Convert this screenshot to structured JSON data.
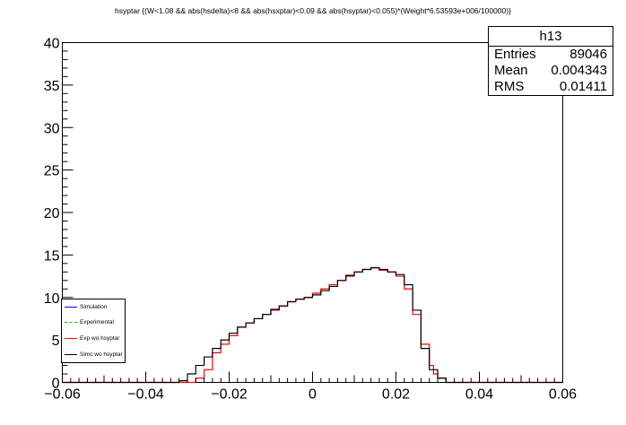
{
  "chart_data": {
    "type": "line",
    "title": "hsyptar {(W<1.08 && abs(hsdelta)<8 && abs(hsxptar)<0.09 && abs(hsyptar)<0.055)*(Weight*6.53593e+006/100000)}",
    "xlabel": "",
    "ylabel": "",
    "xlim": [
      -0.06,
      0.06
    ],
    "ylim": [
      0,
      40
    ],
    "x_ticks": [
      -0.06,
      -0.04,
      -0.02,
      0,
      0.02,
      0.04,
      0.06
    ],
    "x_tick_labels": [
      "−0.06",
      "−0.04",
      "−0.02",
      "0",
      "0.02",
      "0.04",
      "0.06"
    ],
    "y_ticks": [
      0,
      5,
      10,
      15,
      20,
      25,
      30,
      35,
      40
    ],
    "y_tick_labels": [
      "0",
      "5",
      "10",
      "15",
      "20",
      "25",
      "30",
      "35",
      "40"
    ],
    "grid": false,
    "legend_position": "bottom-left",
    "stats": {
      "name": "h13",
      "rows": [
        {
          "label": "Entries",
          "value": "89046"
        },
        {
          "label": "Mean",
          "value": "0.004343"
        },
        {
          "label": "RMS",
          "value": "0.01411"
        }
      ]
    },
    "series": [
      {
        "name": "Simulation",
        "color": "#0000ff",
        "style": "solid",
        "x": [],
        "y": []
      },
      {
        "name": "Experimental",
        "color": "#00c000",
        "style": "dashed",
        "x": [],
        "y": []
      },
      {
        "name": "Exp wo hsyptar",
        "color": "#ff0000",
        "style": "solid",
        "x": [
          -0.06,
          -0.04,
          -0.032,
          -0.03,
          -0.028,
          -0.026,
          -0.024,
          -0.022,
          -0.02,
          -0.018,
          -0.016,
          -0.014,
          -0.012,
          -0.01,
          -0.008,
          -0.006,
          -0.004,
          -0.002,
          0,
          0.002,
          0.004,
          0.006,
          0.008,
          0.01,
          0.012,
          0.014,
          0.016,
          0.018,
          0.02,
          0.022,
          0.024,
          0.026,
          0.028,
          0.029,
          0.03,
          0.032,
          0.036,
          0.06
        ],
        "y": [
          0,
          0,
          0,
          0,
          0.5,
          1.5,
          3.5,
          4.5,
          5.5,
          6.5,
          7.0,
          7.5,
          8.0,
          8.5,
          9.0,
          9.5,
          9.8,
          10.0,
          10.5,
          11.0,
          11.5,
          12.0,
          12.5,
          13.0,
          13.3,
          13.5,
          13.2,
          13.0,
          12.5,
          11.0,
          8.0,
          4.5,
          2.0,
          1.0,
          0.5,
          0,
          0,
          0
        ]
      },
      {
        "name": "Simc wo hsyptar",
        "color": "#000000",
        "style": "solid",
        "x": [
          -0.06,
          -0.034,
          -0.032,
          -0.03,
          -0.028,
          -0.026,
          -0.024,
          -0.022,
          -0.02,
          -0.018,
          -0.016,
          -0.014,
          -0.012,
          -0.01,
          -0.008,
          -0.006,
          -0.004,
          -0.002,
          0,
          0.002,
          0.004,
          0.006,
          0.008,
          0.01,
          0.012,
          0.014,
          0.016,
          0.018,
          0.02,
          0.022,
          0.024,
          0.026,
          0.028,
          0.03,
          0.032,
          0.06
        ],
        "y": [
          0,
          0,
          0.2,
          1.0,
          2.0,
          3.0,
          4.0,
          5.0,
          5.8,
          6.5,
          7.0,
          7.5,
          8.0,
          8.6,
          9.0,
          9.5,
          9.8,
          10.0,
          10.3,
          10.8,
          11.3,
          12.0,
          12.6,
          13.0,
          13.3,
          13.5,
          13.3,
          13.0,
          12.7,
          11.5,
          8.5,
          4.0,
          1.5,
          0.5,
          0,
          0
        ]
      }
    ]
  }
}
